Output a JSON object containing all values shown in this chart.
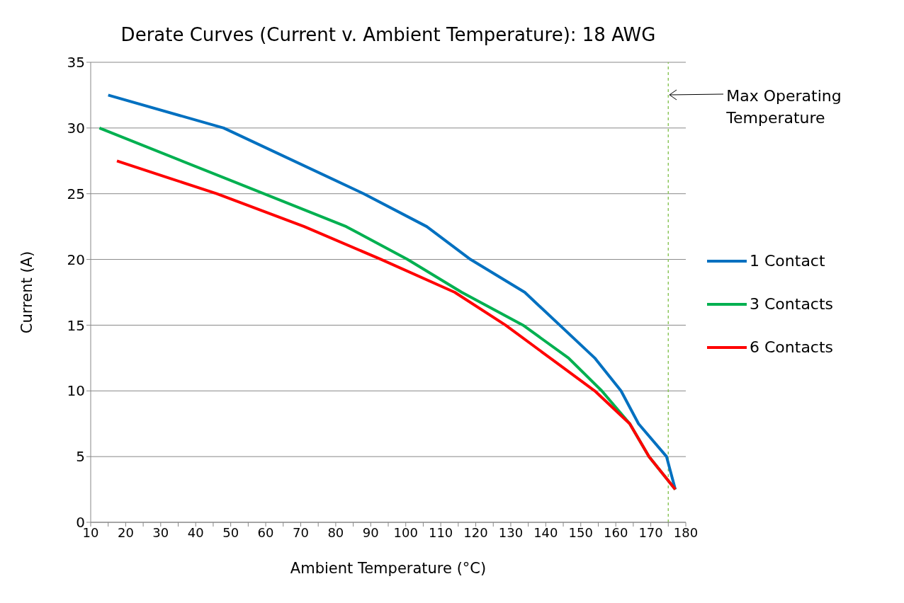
{
  "chart_data": {
    "type": "line",
    "title": "Derate Curves (Current v. Ambient Temperature): 18 AWG",
    "xlabel": "Ambient Temperature (°C)",
    "ylabel": "Current (A)",
    "series": [
      {
        "name": "1 Contact",
        "color": "#0070c0",
        "x": [
          15,
          48,
          88,
          106,
          118.5,
          134,
          154,
          161.5,
          166.5,
          174.5,
          177
        ],
        "values": [
          32.5,
          30,
          25,
          22.5,
          20,
          17.5,
          12.5,
          10,
          7.5,
          5,
          2.5
        ]
      },
      {
        "name": "3 Contacts",
        "color": "#00b050",
        "x": [
          12.5,
          83,
          100.5,
          116,
          133.5,
          146.5,
          156,
          164,
          169.5,
          177
        ],
        "values": [
          30,
          22.5,
          20,
          17.5,
          15,
          12.5,
          10,
          7.5,
          5,
          2.5
        ]
      },
      {
        "name": "6 Contacts",
        "color": "#ff0000",
        "x": [
          17.5,
          46,
          71,
          93,
          114,
          128.5,
          154,
          164,
          169.5,
          177
        ],
        "values": [
          27.5,
          25,
          22.5,
          20,
          17.5,
          15,
          10,
          7.5,
          5,
          2.5
        ]
      }
    ],
    "xlim": [
      10,
      180
    ],
    "xticks": [
      10,
      {
        "value": 15,
        "label": null
      },
      20,
      {
        "value": 25,
        "label": null
      },
      30,
      {
        "value": 35,
        "label": null
      },
      40,
      {
        "value": 45,
        "label": null
      },
      50,
      {
        "value": 55,
        "label": null
      },
      60,
      {
        "value": 65,
        "label": null
      },
      70,
      {
        "value": 75,
        "label": null
      },
      80,
      {
        "value": 85,
        "label": null
      },
      90,
      {
        "value": 95,
        "label": null
      },
      100,
      {
        "value": 105,
        "label": null
      },
      110,
      {
        "value": 115,
        "label": null
      },
      120,
      {
        "value": 125,
        "label": null
      },
      130,
      {
        "value": 135,
        "label": null
      },
      140,
      {
        "value": 145,
        "label": null
      },
      150,
      {
        "value": 155,
        "label": null
      },
      160,
      {
        "value": 165,
        "label": null
      },
      170,
      {
        "value": 175,
        "label": null
      },
      180
    ],
    "ylim": [
      0,
      35
    ],
    "yticks": [
      0,
      5,
      10,
      15,
      20,
      25,
      30,
      35
    ],
    "grid": "y",
    "legend": "right",
    "marker": "none",
    "line_style": "solid",
    "ref_lines": [
      {
        "axis": "x",
        "value": 175,
        "color": "#8cc65a",
        "line_style": "dashed"
      }
    ],
    "annotations": [
      {
        "text": "Max Operating Temperature",
        "x": 175,
        "y": 32.5
      }
    ]
  }
}
